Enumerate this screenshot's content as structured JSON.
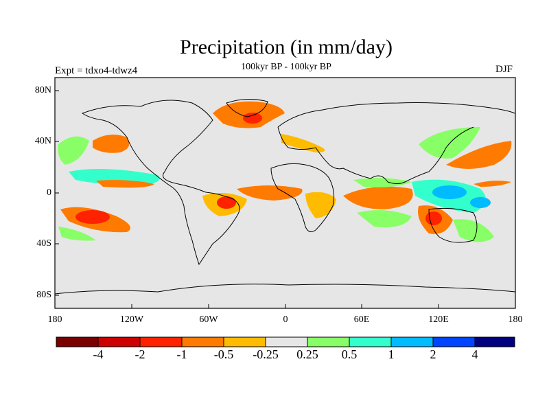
{
  "title": "Precipitation (in mm/day)",
  "subtitle": "100kyr BP - 100kyr BP",
  "experiment": "Expt = tdxo4-tdwz4",
  "season": "DJF",
  "lat_labels": [
    "80N",
    "40N",
    "0",
    "40S",
    "80S"
  ],
  "lon_labels": [
    "180",
    "120W",
    "60W",
    "0",
    "60E",
    "120E",
    "180"
  ],
  "colorbar": {
    "labels": [
      "-4",
      "-2",
      "-1",
      "-0.5",
      "-0.25",
      "0.25",
      "0.5",
      "1",
      "2",
      "4"
    ],
    "colors": [
      "#7a0000",
      "#cc0000",
      "#ff2200",
      "#ff7a00",
      "#ffbb00",
      "#e6e6e6",
      "#88ff66",
      "#33ffcc",
      "#00bbff",
      "#0044ff",
      "#000080"
    ]
  }
}
